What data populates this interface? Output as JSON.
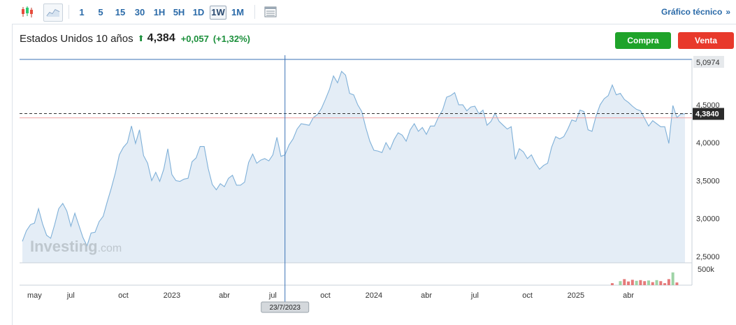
{
  "toolbar": {
    "icons": [
      "candlestick-icon",
      "area-chart-icon",
      "table-icon"
    ],
    "intervals": [
      "1",
      "5",
      "15",
      "30",
      "1H",
      "5H",
      "1D",
      "1W",
      "1M"
    ],
    "active_interval": "1W",
    "tech_link": "Gráfico técnico",
    "tech_chevron": "»"
  },
  "header": {
    "instrument": "Estados Unidos 10 años",
    "price": "4,384",
    "change": "+0,057",
    "change_pct": "(+1,32%)"
  },
  "buttons": {
    "buy": "Compra",
    "sell": "Venta"
  },
  "colors": {
    "buy": "#1fa32a",
    "sell": "#e8392b",
    "line": "#7fb0d8",
    "area": "#e4edf6",
    "crosshair": "#3a72b5"
  },
  "watermark": {
    "brand": "Investing",
    "suffix": ".com"
  },
  "crosshair_label": "23/7/2023",
  "chart_data": {
    "type": "area",
    "series": [
      {
        "values": [
          2.7,
          2.84,
          2.92,
          2.94,
          3.13,
          2.93,
          2.78,
          2.74,
          2.92,
          3.13,
          3.2,
          3.1,
          2.9,
          3.07,
          2.91,
          2.75,
          2.64,
          2.81,
          2.82,
          2.96,
          3.03,
          3.22,
          3.4,
          3.6,
          3.84,
          3.94,
          4.0,
          4.22,
          3.99,
          4.17,
          3.83,
          3.73,
          3.5,
          3.61,
          3.49,
          3.65,
          3.92,
          3.58,
          3.5,
          3.49,
          3.52,
          3.53,
          3.75,
          3.8,
          3.95,
          3.95,
          3.66,
          3.45,
          3.38,
          3.46,
          3.42,
          3.53,
          3.57,
          3.44,
          3.44,
          3.48,
          3.74,
          3.85,
          3.73,
          3.77,
          3.79,
          3.76,
          3.84,
          4.07,
          3.82,
          3.84,
          3.97,
          4.05,
          4.18,
          4.25,
          4.24,
          4.23,
          4.33,
          4.37,
          4.45,
          4.57,
          4.7,
          4.88,
          4.79,
          4.94,
          4.89,
          4.65,
          4.63,
          4.5,
          4.41,
          4.2,
          4.02,
          3.9,
          3.89,
          3.87,
          4.0,
          3.91,
          4.04,
          4.13,
          4.1,
          4.02,
          4.17,
          4.25,
          4.15,
          4.2,
          4.11,
          4.22,
          4.22,
          4.34,
          4.43,
          4.6,
          4.62,
          4.66,
          4.5,
          4.5,
          4.42,
          4.47,
          4.48,
          4.38,
          4.43,
          4.23,
          4.28,
          4.39,
          4.28,
          4.23,
          4.18,
          4.21,
          3.78,
          3.92,
          3.88,
          3.79,
          3.84,
          3.73,
          3.65,
          3.7,
          3.73,
          3.94,
          4.08,
          4.05,
          4.08,
          4.18,
          4.3,
          4.28,
          4.43,
          4.41,
          4.17,
          4.15,
          4.35,
          4.5,
          4.58,
          4.62,
          4.76,
          4.63,
          4.65,
          4.57,
          4.53,
          4.48,
          4.44,
          4.42,
          4.32,
          4.22,
          4.29,
          4.25,
          4.21,
          4.21,
          3.99,
          4.49,
          4.33,
          4.38,
          4.38
        ]
      }
    ],
    "y_ticks": [
      "4,5000",
      "4,0000",
      "3,5000",
      "3,0000",
      "2,5000"
    ],
    "y_tick_values": [
      4.5,
      4.0,
      3.5,
      3.0,
      2.5
    ],
    "x_ticks": [
      "may",
      "jul",
      "oct",
      "2023",
      "abr",
      "jul",
      "oct",
      "2024",
      "abr",
      "jul",
      "oct",
      "2025",
      "abr"
    ],
    "x_tick_index": [
      3,
      12,
      25,
      37,
      50,
      62,
      75,
      87,
      100,
      112,
      125,
      137,
      150
    ],
    "max_label": "5,0974",
    "max_value": 5.0974,
    "last_label": "4,3840",
    "last_value": 4.384,
    "ref_value": 4.327,
    "crosshair_index": 65,
    "volume_label": "500k",
    "volume_max": 500000,
    "volumes": [
      {
        "i": 146,
        "v": 60000,
        "up": false
      },
      {
        "i": 148,
        "v": 120000,
        "up": true
      },
      {
        "i": 149,
        "v": 180000,
        "up": false
      },
      {
        "i": 150,
        "v": 110000,
        "up": false
      },
      {
        "i": 151,
        "v": 160000,
        "up": false
      },
      {
        "i": 152,
        "v": 130000,
        "up": true
      },
      {
        "i": 153,
        "v": 150000,
        "up": false
      },
      {
        "i": 154,
        "v": 120000,
        "up": false
      },
      {
        "i": 155,
        "v": 140000,
        "up": true
      },
      {
        "i": 156,
        "v": 90000,
        "up": false
      },
      {
        "i": 157,
        "v": 150000,
        "up": true
      },
      {
        "i": 158,
        "v": 120000,
        "up": false
      },
      {
        "i": 159,
        "v": 60000,
        "up": false
      },
      {
        "i": 160,
        "v": 180000,
        "up": false
      },
      {
        "i": 161,
        "v": 380000,
        "up": true
      },
      {
        "i": 162,
        "v": 80000,
        "up": false
      }
    ],
    "ylim": [
      2.5,
      5.1
    ]
  }
}
